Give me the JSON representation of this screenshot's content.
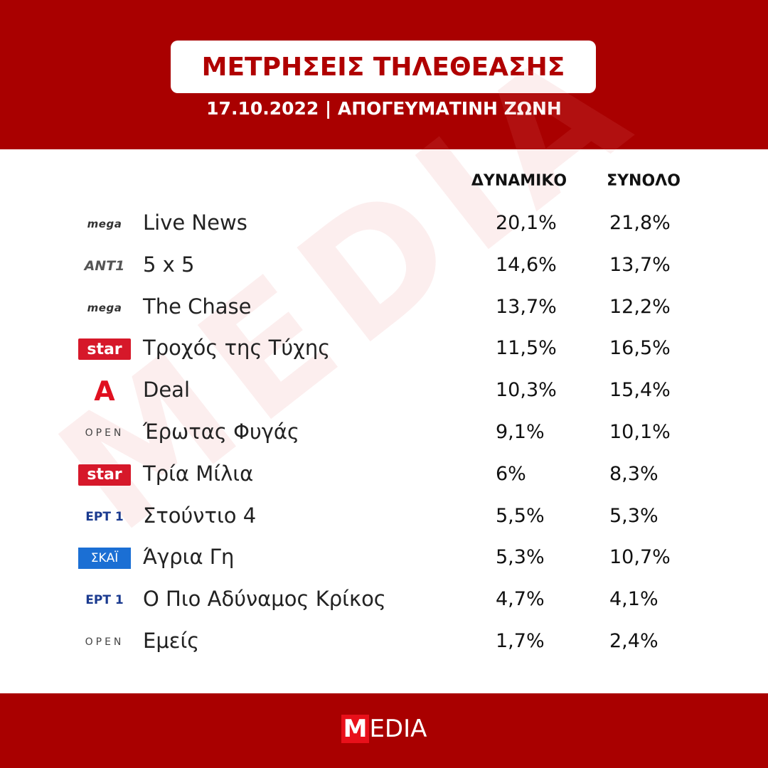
{
  "header": {
    "title": "ΜΕΤΡΗΣΕΙΣ ΤΗΛΕΘΕΑΣΗΣ",
    "subtitle": "17.10.2022 | ΑΠΟΓΕΥΜΑΤΙΝΗ ΖΩΝΗ"
  },
  "table": {
    "columns": [
      "ΔΥΝΑΜΙΚΟ",
      "ΣΥΝΟΛΟ"
    ],
    "rows": [
      {
        "channel": "mega",
        "program": "Live News",
        "values": [
          "20,1%",
          "21,8%"
        ]
      },
      {
        "channel": "ANT1",
        "program": "5 x 5",
        "values": [
          "14,6%",
          "13,7%"
        ]
      },
      {
        "channel": "mega",
        "program": "The Chase",
        "values": [
          "13,7%",
          "12,2%"
        ]
      },
      {
        "channel": "star",
        "program": "Τροχός της Τύχης",
        "values": [
          "11,5%",
          "16,5%"
        ]
      },
      {
        "channel": "Α",
        "program": "Deal",
        "values": [
          "10,3%",
          "15,4%"
        ]
      },
      {
        "channel": "OPEN",
        "program": "Έρωτας Φυγάς",
        "values": [
          "9,1%",
          "10,1%"
        ]
      },
      {
        "channel": "star",
        "program": "Τρία Μίλια",
        "values": [
          "6%",
          "8,3%"
        ]
      },
      {
        "channel": "ΕΡΤ 1",
        "program": "Στούντιο 4",
        "values": [
          "5,5%",
          "5,3%"
        ]
      },
      {
        "channel": "ΣΚΑΪ",
        "program": "Άγρια Γη",
        "values": [
          "5,3%",
          "10,7%"
        ]
      },
      {
        "channel": "ΕΡΤ 1",
        "program": "Ο Πιο Αδύναμος Κρίκος",
        "values": [
          "4,7%",
          "4,1%"
        ]
      },
      {
        "channel": "OPEN",
        "program": "Εμείς",
        "values": [
          "1,7%",
          "2,4%"
        ]
      }
    ]
  },
  "watermark": "MEDIA",
  "footer": {
    "logo_initial": "M",
    "logo_rest": "EDIA"
  }
}
